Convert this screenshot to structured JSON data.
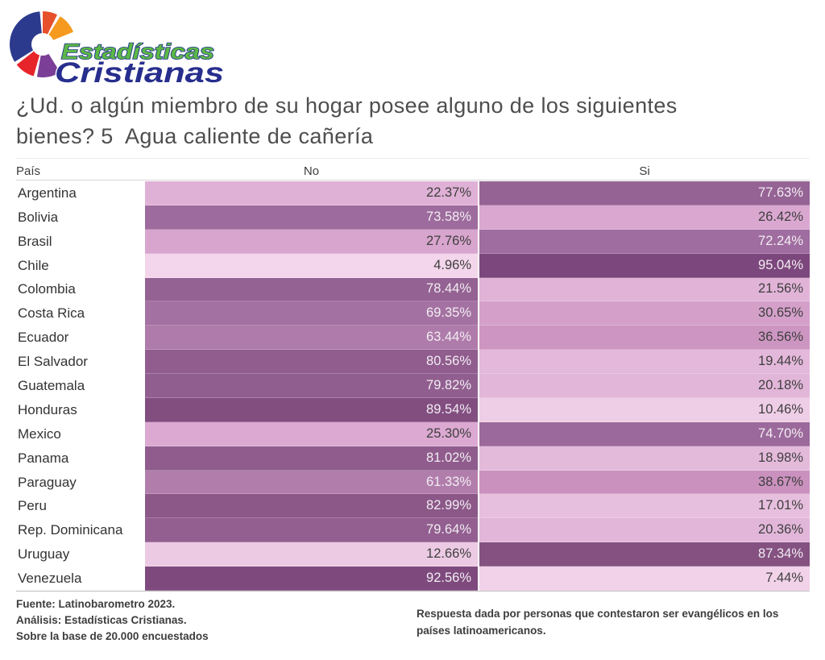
{
  "logo": {
    "text_top": "Estadísticas",
    "text_bottom": "Cristianas",
    "colors": {
      "blue": "#2c3a8d",
      "vermilion": "#e6502a",
      "orange": "#f59a1f",
      "red": "#e7242a",
      "purple": "#7b3f97",
      "green_text": "#5cb845",
      "navy_text": "#272e8d",
      "outline_navy": "#21368c",
      "outline_white": "#ffffff"
    }
  },
  "title": {
    "line1": "¿Ud. o algún miembro de su hogar posee alguno de los siguientes",
    "line2": "bienes? 5  Agua caliente de cañería"
  },
  "table": {
    "headers": {
      "country": "País",
      "no": "No",
      "si": "Si"
    },
    "rows": [
      {
        "country": "Argentina",
        "no": "22.37%",
        "no_value": 22.37,
        "si": "77.63%",
        "si_value": 77.63
      },
      {
        "country": "Bolivia",
        "no": "73.58%",
        "no_value": 73.58,
        "si": "26.42%",
        "si_value": 26.42
      },
      {
        "country": "Brasil",
        "no": "27.76%",
        "no_value": 27.76,
        "si": "72.24%",
        "si_value": 72.24
      },
      {
        "country": "Chile",
        "no": "4.96%",
        "no_value": 4.96,
        "si": "95.04%",
        "si_value": 95.04
      },
      {
        "country": "Colombia",
        "no": "78.44%",
        "no_value": 78.44,
        "si": "21.56%",
        "si_value": 21.56
      },
      {
        "country": "Costa Rica",
        "no": "69.35%",
        "no_value": 69.35,
        "si": "30.65%",
        "si_value": 30.65
      },
      {
        "country": "Ecuador",
        "no": "63.44%",
        "no_value": 63.44,
        "si": "36.56%",
        "si_value": 36.56
      },
      {
        "country": "El Salvador",
        "no": "80.56%",
        "no_value": 80.56,
        "si": "19.44%",
        "si_value": 19.44
      },
      {
        "country": "Guatemala",
        "no": "79.82%",
        "no_value": 79.82,
        "si": "20.18%",
        "si_value": 20.18
      },
      {
        "country": "Honduras",
        "no": "89.54%",
        "no_value": 89.54,
        "si": "10.46%",
        "si_value": 10.46
      },
      {
        "country": "Mexico",
        "no": "25.30%",
        "no_value": 25.3,
        "si": "74.70%",
        "si_value": 74.7
      },
      {
        "country": "Panama",
        "no": "81.02%",
        "no_value": 81.02,
        "si": "18.98%",
        "si_value": 18.98
      },
      {
        "country": "Paraguay",
        "no": "61.33%",
        "no_value": 61.33,
        "si": "38.67%",
        "si_value": 38.67
      },
      {
        "country": "Peru",
        "no": "82.99%",
        "no_value": 82.99,
        "si": "17.01%",
        "si_value": 17.01
      },
      {
        "country": "Rep. Dominicana",
        "no": "79.64%",
        "no_value": 79.64,
        "si": "20.36%",
        "si_value": 20.36
      },
      {
        "country": "Uruguay",
        "no": "12.66%",
        "no_value": 12.66,
        "si": "87.34%",
        "si_value": 87.34
      },
      {
        "country": "Venezuela",
        "no": "92.56%",
        "no_value": 92.56,
        "si": "7.44%",
        "si_value": 7.44
      }
    ]
  },
  "footer": {
    "left_lines": [
      "Fuente: Latinobarometro 2023.",
      "Análisis: Estadísticas Cristianas.",
      "Sobre la base de 20.000 encuestados"
    ],
    "right_lines": [
      "Respuesta dada por personas que contestaron ser evangélicos en los",
      "países latinoamericanos."
    ]
  },
  "colors": {
    "heat_stops": [
      [
        0,
        "#f7def0"
      ],
      [
        13,
        "#ecc9e4"
      ],
      [
        25,
        "#dcaad2"
      ],
      [
        40,
        "#c88fbc"
      ],
      [
        62,
        "#b07dac"
      ],
      [
        75,
        "#9b699b"
      ],
      [
        85,
        "#875483"
      ],
      [
        100,
        "#764178"
      ]
    ],
    "value_text_dark": "#3f3f3f",
    "value_text_light": "#f2ecf2"
  },
  "chart_data": {
    "type": "heatmap",
    "title": "¿Ud. o algún miembro de su hogar posee alguno de los siguientes bienes? 5  Agua caliente de cañería",
    "categories": [
      "Argentina",
      "Bolivia",
      "Brasil",
      "Chile",
      "Colombia",
      "Costa Rica",
      "Ecuador",
      "El Salvador",
      "Guatemala",
      "Honduras",
      "Mexico",
      "Panama",
      "Paraguay",
      "Peru",
      "Rep. Dominicana",
      "Uruguay",
      "Venezuela"
    ],
    "series": [
      {
        "name": "No",
        "values": [
          22.37,
          73.58,
          27.76,
          4.96,
          78.44,
          69.35,
          63.44,
          80.56,
          79.82,
          89.54,
          25.3,
          81.02,
          61.33,
          82.99,
          79.64,
          12.66,
          92.56
        ]
      },
      {
        "name": "Si",
        "values": [
          77.63,
          26.42,
          72.24,
          95.04,
          21.56,
          30.65,
          36.56,
          19.44,
          20.18,
          10.46,
          74.7,
          18.98,
          38.67,
          17.01,
          20.36,
          87.34,
          7.44
        ]
      }
    ],
    "unit": "%",
    "value_range": [
      0,
      100
    ],
    "color_scale": {
      "low": "#f7def0",
      "high": "#764178"
    },
    "source": "Latinobarometro 2023",
    "sample": "20.000 encuestados"
  }
}
